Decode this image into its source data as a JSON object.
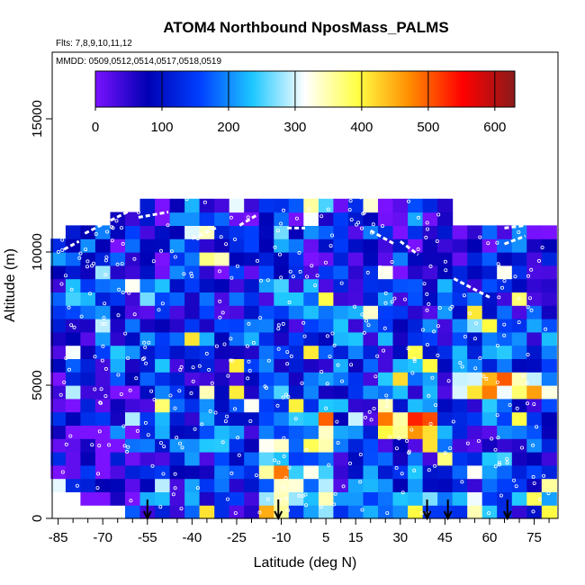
{
  "chart_data": {
    "type": "heatmap",
    "title": "ATOM4 Northbound NposMass_PALMS",
    "flights_label": "Flts: 7,8,9,10,11,12",
    "dates_label": "MMDD: 0509,0512,0514,0517,0518,0519",
    "xlabel": "Latitude (deg N)",
    "ylabel": "Altitude (m)",
    "xlim": [
      -87,
      83
    ],
    "ylim": [
      0,
      17500
    ],
    "x_ticks": [
      -85,
      -70,
      -55,
      -40,
      -25,
      -10,
      5,
      15,
      30,
      45,
      60,
      75
    ],
    "y_ticks": [
      0,
      5000,
      10000,
      15000
    ],
    "colorbar": {
      "range": [
        0,
        630
      ],
      "ticks": [
        0,
        100,
        200,
        300,
        400,
        500,
        600
      ],
      "colors": [
        "#7a12ff",
        "#0000b4",
        "#0040ff",
        "#1ec8ff",
        "#ffffff",
        "#ffff44",
        "#ff8c00",
        "#ff0000",
        "#8b1a1a"
      ]
    },
    "lat_bins": [
      -85,
      -80,
      -75,
      -70,
      -65,
      -60,
      -55,
      -50,
      -45,
      -40,
      -35,
      -30,
      -25,
      -20,
      -15,
      -10,
      -5,
      0,
      5,
      10,
      15,
      20,
      25,
      30,
      35,
      40,
      45,
      50,
      55,
      60,
      65,
      70,
      75,
      80
    ],
    "alt_bins_km": [
      0.25,
      0.75,
      1.25,
      1.75,
      2.25,
      2.75,
      3.25,
      3.75,
      4.25,
      4.75,
      5.25,
      5.75,
      6.25,
      6.75,
      7.25,
      7.75,
      8.25,
      8.75,
      9.25,
      9.75,
      10.25,
      10.75,
      11.25,
      11.75,
      12.25
    ],
    "values_description_note": "",
    "profile_markers_lat": [
      -55,
      -11,
      39,
      46,
      66
    ]
  }
}
